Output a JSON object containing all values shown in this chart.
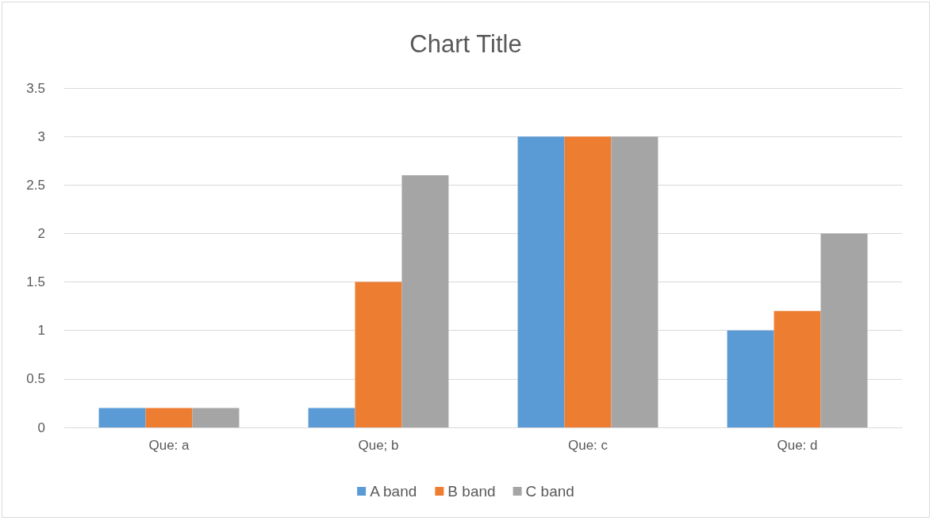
{
  "chart_data": {
    "type": "bar",
    "title": "Chart Title",
    "categories": [
      "Que: a",
      "Que; b",
      "Que: c",
      "Que: d"
    ],
    "series": [
      {
        "name": "A band",
        "color": "#5b9bd5",
        "values": [
          0.2,
          0.2,
          3,
          1
        ]
      },
      {
        "name": "B band",
        "color": "#ed7d31",
        "values": [
          0.2,
          1.5,
          3,
          1.2
        ]
      },
      {
        "name": "C band",
        "color": "#a5a5a5",
        "values": [
          0.2,
          2.6,
          3,
          2
        ]
      }
    ],
    "ylim": [
      0,
      3.5
    ],
    "yticks": [
      0,
      0.5,
      1,
      1.5,
      2,
      2.5,
      3,
      3.5
    ],
    "grid": "y",
    "legend": "bottom"
  }
}
